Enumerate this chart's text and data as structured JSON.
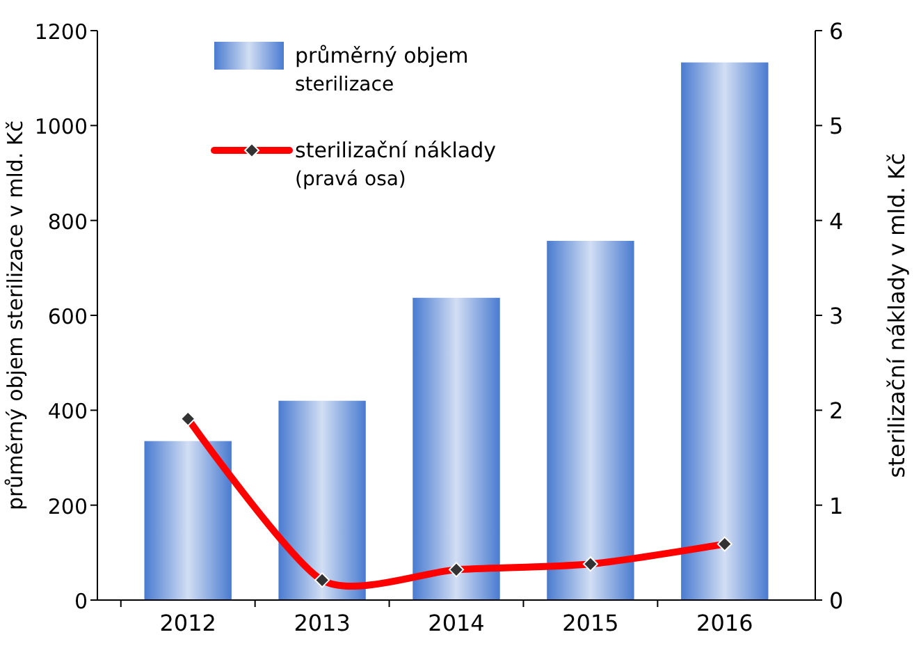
{
  "chart_data": {
    "type": "bar",
    "categories": [
      "2012",
      "2013",
      "2014",
      "2015",
      "2016"
    ],
    "ylabel": "průměrný objem sterilizace v mld. Kč",
    "y2label": "sterilizační náklady v mld. Kč",
    "ylim": [
      0,
      1200
    ],
    "yticks": [
      0,
      200,
      400,
      600,
      800,
      1000,
      1200
    ],
    "y2lim": [
      0,
      6
    ],
    "y2ticks": [
      0,
      1,
      2,
      3,
      4,
      5,
      6
    ],
    "legend": "top left",
    "grid": false,
    "series": [
      {
        "name": "průměrný objem sterilizace",
        "color": "#4a7bd0",
        "values": [
          335,
          420,
          637,
          757,
          1133
        ]
      },
      {
        "name": "sterilizační náklady (pravá osa)",
        "type": "line",
        "axis": "y2",
        "color": "#ff0000",
        "marker": "diamond",
        "values": [
          1.91,
          0.21,
          0.32,
          0.38,
          0.59
        ]
      }
    ]
  }
}
